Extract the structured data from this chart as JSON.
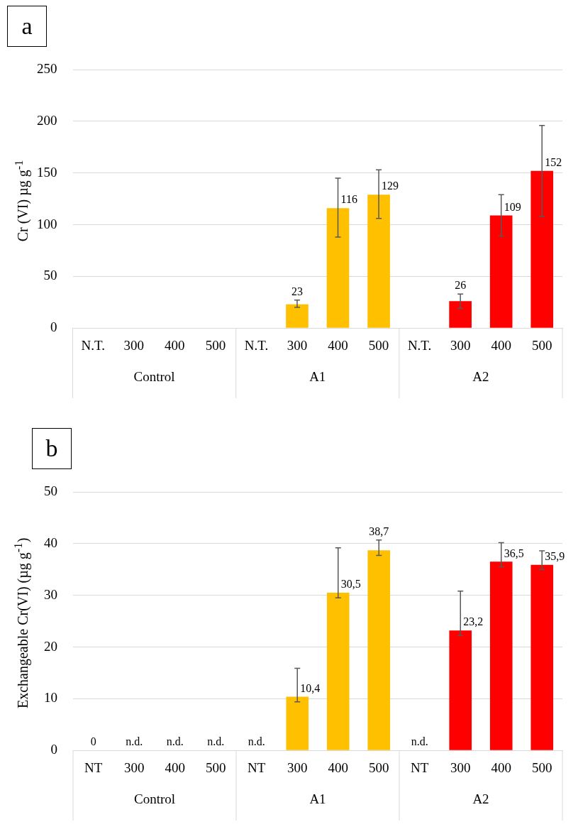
{
  "chart_data": [
    {
      "type": "bar",
      "title": "a",
      "ylabel": "Cr (VI) µg g$^{-1}$",
      "categories": [
        "N.T.",
        "300",
        "400",
        "500",
        "N.T.",
        "300",
        "400",
        "500",
        "N.T.",
        "300",
        "400",
        "500"
      ],
      "values": [
        0,
        0,
        0,
        0,
        0,
        23,
        116,
        129,
        0,
        26,
        109,
        152
      ],
      "colors": [
        "#a5a5a5",
        "#a5a5a5",
        "#a5a5a5",
        "#a5a5a5",
        "#ffc000",
        "#ffc000",
        "#ffc000",
        "#ffc000",
        "#ff0000",
        "#ff0000",
        "#ff0000",
        "#ff0000"
      ],
      "errors": [
        null,
        null,
        null,
        null,
        null,
        [
          20,
          27
        ],
        [
          88,
          145
        ],
        [
          106,
          153
        ],
        null,
        [
          19,
          33
        ],
        [
          89,
          129
        ],
        [
          108,
          196
        ]
      ],
      "value_labels": [
        null,
        null,
        null,
        null,
        null,
        "23",
        "116",
        "129",
        null,
        "26",
        "109",
        "152"
      ],
      "annotations": [
        "Control",
        "A1",
        "A2"
      ],
      "ylim": [
        0,
        250
      ],
      "yticks": [
        0,
        50,
        100,
        150,
        200,
        250
      ],
      "grid": "y"
    },
    {
      "type": "bar",
      "title": "b",
      "ylabel": "Exchangeable Cr(VI) (µg g$^{-1}$)",
      "categories": [
        "NT",
        "300",
        "400",
        "500",
        "NT",
        "300",
        "400",
        "500",
        "NT",
        "300",
        "400",
        "500"
      ],
      "values": [
        0,
        null,
        null,
        null,
        null,
        10.4,
        30.5,
        38.7,
        null,
        23.2,
        36.5,
        35.9
      ],
      "colors": [
        "#a5a5a5",
        "#a5a5a5",
        "#a5a5a5",
        "#a5a5a5",
        "#ffc000",
        "#ffc000",
        "#ffc000",
        "#ffc000",
        "#ff0000",
        "#ff0000",
        "#ff0000",
        "#ff0000"
      ],
      "errors": [
        null,
        null,
        null,
        null,
        null,
        [
          9.4,
          15.9
        ],
        [
          29.5,
          39.2
        ],
        [
          37.7,
          40.7
        ],
        null,
        [
          22.2,
          30.8
        ],
        [
          35.5,
          40.2
        ],
        [
          35,
          38.6
        ]
      ],
      "value_labels": [
        "0",
        "n.d.",
        "n.d.",
        "n.d.",
        "n.d.",
        "10,4",
        "30,5",
        "38,7",
        "n.d.",
        "23,2",
        "36,5",
        "35,9"
      ],
      "annotations": [
        "Control",
        "A1",
        "A2"
      ],
      "ylim": [
        0,
        50
      ],
      "yticks": [
        0,
        10,
        20,
        30,
        40,
        50
      ],
      "grid": "y"
    }
  ]
}
